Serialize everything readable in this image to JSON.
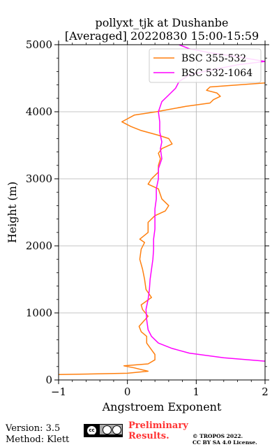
{
  "chart_data": {
    "type": "line",
    "title_line1": "pollyxt_tjk at Dushanbe",
    "title_line2": "[Averaged] 20220830 15:00-15:59",
    "xlabel": "Angstroem Exponent",
    "ylabel": "Height (m)",
    "xlim": [
      -1,
      2
    ],
    "ylim": [
      0,
      5000
    ],
    "xticks": [
      -1,
      0,
      1,
      2
    ],
    "yticks": [
      0,
      1000,
      2000,
      3000,
      4000,
      5000
    ],
    "xtick_labels": [
      "−1",
      "0",
      "1",
      "2"
    ],
    "ytick_labels": [
      "0",
      "1000",
      "2000",
      "3000",
      "4000",
      "5000"
    ],
    "grid": true,
    "legend_position": "top-right",
    "series": [
      {
        "name": "BSC 355-532",
        "color": "#ff7f0e",
        "points": [
          [
            -1.0,
            80
          ],
          [
            0.0,
            100
          ],
          [
            0.3,
            130
          ],
          [
            0.1,
            180
          ],
          [
            -0.05,
            210
          ],
          [
            0.3,
            240
          ],
          [
            0.4,
            300
          ],
          [
            0.4,
            380
          ],
          [
            0.35,
            450
          ],
          [
            0.28,
            550
          ],
          [
            0.28,
            650
          ],
          [
            0.2,
            720
          ],
          [
            0.17,
            800
          ],
          [
            0.3,
            950
          ],
          [
            0.22,
            1050
          ],
          [
            0.2,
            1120
          ],
          [
            0.35,
            1230
          ],
          [
            0.27,
            1350
          ],
          [
            0.25,
            1500
          ],
          [
            0.22,
            1650
          ],
          [
            0.18,
            1800
          ],
          [
            0.2,
            1950
          ],
          [
            0.25,
            2050
          ],
          [
            0.18,
            2100
          ],
          [
            0.3,
            2200
          ],
          [
            0.3,
            2350
          ],
          [
            0.4,
            2450
          ],
          [
            0.55,
            2520
          ],
          [
            0.6,
            2600
          ],
          [
            0.5,
            2700
          ],
          [
            0.45,
            2850
          ],
          [
            0.3,
            2920
          ],
          [
            0.35,
            3000
          ],
          [
            0.45,
            3100
          ],
          [
            0.45,
            3200
          ],
          [
            0.48,
            3300
          ],
          [
            0.45,
            3380
          ],
          [
            0.5,
            3450
          ],
          [
            0.65,
            3520
          ],
          [
            0.6,
            3600
          ],
          [
            0.45,
            3650
          ],
          [
            0.2,
            3720
          ],
          [
            0.05,
            3780
          ],
          [
            -0.08,
            3850
          ],
          [
            0.1,
            3950
          ],
          [
            0.42,
            4000
          ],
          [
            0.85,
            4080
          ],
          [
            1.2,
            4130
          ],
          [
            1.25,
            4180
          ],
          [
            1.35,
            4230
          ],
          [
            1.3,
            4280
          ],
          [
            1.15,
            4320
          ],
          [
            1.2,
            4370
          ],
          [
            2.0,
            4430
          ]
        ]
      },
      {
        "name": "BSC 532-1064",
        "color": "#ff00ff",
        "points": [
          [
            2.0,
            280
          ],
          [
            1.4,
            330
          ],
          [
            0.9,
            400
          ],
          [
            0.65,
            470
          ],
          [
            0.45,
            550
          ],
          [
            0.35,
            650
          ],
          [
            0.3,
            750
          ],
          [
            0.28,
            900
          ],
          [
            0.27,
            1050
          ],
          [
            0.3,
            1200
          ],
          [
            0.32,
            1350
          ],
          [
            0.33,
            1500
          ],
          [
            0.35,
            1650
          ],
          [
            0.37,
            1800
          ],
          [
            0.38,
            1950
          ],
          [
            0.38,
            2100
          ],
          [
            0.4,
            2250
          ],
          [
            0.4,
            2400
          ],
          [
            0.4,
            2550
          ],
          [
            0.42,
            2700
          ],
          [
            0.42,
            2850
          ],
          [
            0.45,
            3000
          ],
          [
            0.45,
            3150
          ],
          [
            0.5,
            3300
          ],
          [
            0.48,
            3450
          ],
          [
            0.5,
            3550
          ],
          [
            0.47,
            3700
          ],
          [
            0.47,
            3850
          ],
          [
            0.45,
            4000
          ],
          [
            0.5,
            4150
          ],
          [
            0.6,
            4250
          ],
          [
            0.7,
            4350
          ],
          [
            0.75,
            4450
          ],
          [
            0.9,
            4550
          ],
          [
            1.2,
            4620
          ],
          [
            1.6,
            4700
          ],
          [
            2.0,
            4750
          ],
          [
            1.6,
            4820
          ],
          [
            1.2,
            4880
          ],
          [
            0.9,
            4940
          ],
          [
            0.75,
            5000
          ]
        ]
      }
    ]
  },
  "footer": {
    "version": "Version: 3.5",
    "method": "Method: Klett",
    "license_badge_text": "cc",
    "preliminary_line1": "Preliminary",
    "preliminary_line2": "Results.",
    "copyright_line1": "© TROPOS 2022.",
    "copyright_line2": "CC BY SA 4.0 License."
  }
}
